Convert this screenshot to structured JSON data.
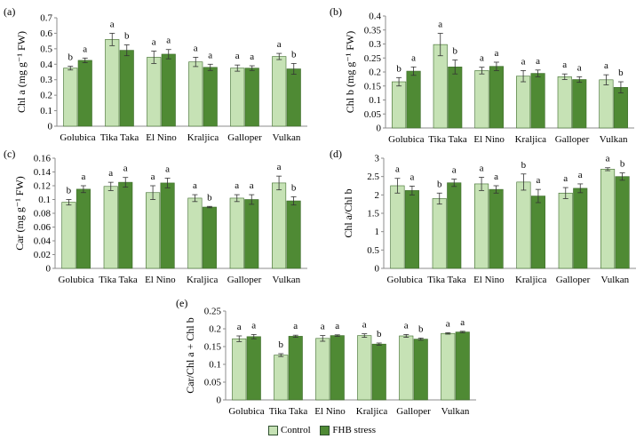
{
  "colors": {
    "control": "#c6e2b5",
    "stress": "#4f8a34",
    "axis": "#8c8c8c",
    "errbar": "#333333"
  },
  "legend": {
    "control": "Control",
    "stress": "FHB stress"
  },
  "chart_data": [
    {
      "panel": "(a)",
      "type": "bar",
      "ylabel": "Chl a (mg g⁻¹ FW)",
      "ylim": [
        0,
        0.7
      ],
      "yticks": [
        "0",
        "0.1",
        "0.2",
        "0.3",
        "0.4",
        "0.5",
        "0.6",
        "0.7"
      ],
      "categories": [
        "Golubica",
        "Tika Taka",
        "El Nino",
        "Kraljica",
        "Galloper",
        "Vulkan"
      ],
      "series": [
        {
          "name": "Control",
          "values": [
            0.375,
            0.56,
            0.445,
            0.415,
            0.375,
            0.45
          ],
          "errors": [
            0.012,
            0.04,
            0.04,
            0.03,
            0.02,
            0.02
          ],
          "letters": [
            "b",
            "a",
            "a",
            "a",
            "a",
            "a"
          ]
        },
        {
          "name": "FHB stress",
          "values": [
            0.425,
            0.49,
            0.465,
            0.38,
            0.375,
            0.37
          ],
          "errors": [
            0.015,
            0.035,
            0.03,
            0.02,
            0.015,
            0.035
          ],
          "letters": [
            "a",
            "b",
            "a",
            "a",
            "a",
            "b"
          ]
        }
      ]
    },
    {
      "panel": "(b)",
      "type": "bar",
      "ylabel": "Chl b (mg g⁻¹ FW)",
      "ylim": [
        0,
        0.4
      ],
      "yticks": [
        "0",
        "0.05",
        "0.1",
        "0.15",
        "0.2",
        "0.25",
        "0.3",
        "0.35",
        "0.4"
      ],
      "categories": [
        "Golubica",
        "Tika Taka",
        "El Nino",
        "Kraljica",
        "Galloper",
        "Vulkan"
      ],
      "series": [
        {
          "name": "Control",
          "values": [
            0.165,
            0.298,
            0.205,
            0.185,
            0.183,
            0.172
          ],
          "errors": [
            0.015,
            0.04,
            0.012,
            0.02,
            0.01,
            0.018
          ],
          "letters": [
            "b",
            "a",
            "a",
            "a",
            "a",
            "a"
          ]
        },
        {
          "name": "FHB stress",
          "values": [
            0.203,
            0.218,
            0.22,
            0.195,
            0.173,
            0.145
          ],
          "errors": [
            0.015,
            0.025,
            0.015,
            0.012,
            0.01,
            0.02
          ],
          "letters": [
            "a",
            "b",
            "a",
            "a",
            "a",
            "b"
          ]
        }
      ]
    },
    {
      "panel": "(c)",
      "type": "bar",
      "ylabel": "Car (mg g⁻¹ FW)",
      "ylim": [
        0,
        0.16
      ],
      "yticks": [
        "0",
        "0.02",
        "0.04",
        "0.06",
        "0.08",
        "0.1",
        "0.12",
        "0.14",
        "0.16"
      ],
      "categories": [
        "Golubica",
        "Tika Taka",
        "El Nino",
        "Kraljica",
        "Galloper",
        "Vulkan"
      ],
      "series": [
        {
          "name": "Control",
          "values": [
            0.096,
            0.119,
            0.11,
            0.102,
            0.102,
            0.124
          ],
          "errors": [
            0.004,
            0.006,
            0.01,
            0.005,
            0.005,
            0.01
          ],
          "letters": [
            "b",
            "a",
            "a",
            "a",
            "a",
            "a"
          ]
        },
        {
          "name": "FHB stress",
          "values": [
            0.115,
            0.125,
            0.124,
            0.089,
            0.1,
            0.098
          ],
          "errors": [
            0.005,
            0.007,
            0.007,
            0.001,
            0.007,
            0.006
          ],
          "letters": [
            "a",
            "a",
            "a",
            "b",
            "a",
            "b"
          ]
        }
      ]
    },
    {
      "panel": "(d)",
      "type": "bar",
      "ylabel": "Chl a/Chl b",
      "ylim": [
        0,
        3
      ],
      "yticks": [
        "0",
        "0.5",
        "1",
        "1.5",
        "2",
        "2.5",
        "3"
      ],
      "categories": [
        "Golubica",
        "Tika Taka",
        "El Nino",
        "Kraljica",
        "Galloper",
        "Vulkan"
      ],
      "series": [
        {
          "name": "Control",
          "values": [
            2.25,
            1.9,
            2.3,
            2.35,
            2.05,
            2.7
          ],
          "errors": [
            0.2,
            0.15,
            0.18,
            0.22,
            0.15,
            0.04
          ],
          "letters": [
            "a",
            "b",
            "a",
            "b",
            "a",
            "a"
          ]
        },
        {
          "name": "FHB stress",
          "values": [
            2.12,
            2.33,
            2.15,
            1.97,
            2.18,
            2.5
          ],
          "errors": [
            0.12,
            0.1,
            0.1,
            0.18,
            0.12,
            0.1
          ],
          "letters": [
            "a",
            "a",
            "a",
            "a",
            "a",
            "b"
          ]
        }
      ]
    },
    {
      "panel": "(e)",
      "type": "bar",
      "ylabel": "Car/Chl a + Chl b",
      "ylim": [
        0,
        0.25
      ],
      "yticks": [
        "0",
        "0.05",
        "0.1",
        "0.15",
        "0.2",
        "0.25"
      ],
      "categories": [
        "Golubica",
        "Tika Taka",
        "El Nino",
        "Kraljica",
        "Galloper",
        "Vulkan"
      ],
      "series": [
        {
          "name": "Control",
          "values": [
            0.172,
            0.126,
            0.173,
            0.181,
            0.18,
            0.187
          ],
          "errors": [
            0.008,
            0.004,
            0.008,
            0.005,
            0.004,
            0.002
          ],
          "letters": [
            "a",
            "b",
            "a",
            "a",
            "a",
            "a"
          ]
        },
        {
          "name": "FHB stress",
          "values": [
            0.178,
            0.179,
            0.181,
            0.157,
            0.171,
            0.191
          ],
          "errors": [
            0.006,
            0.003,
            0.002,
            0.003,
            0.003,
            0.002
          ],
          "letters": [
            "a",
            "a",
            "a",
            "b",
            "b",
            "a"
          ]
        }
      ]
    }
  ]
}
